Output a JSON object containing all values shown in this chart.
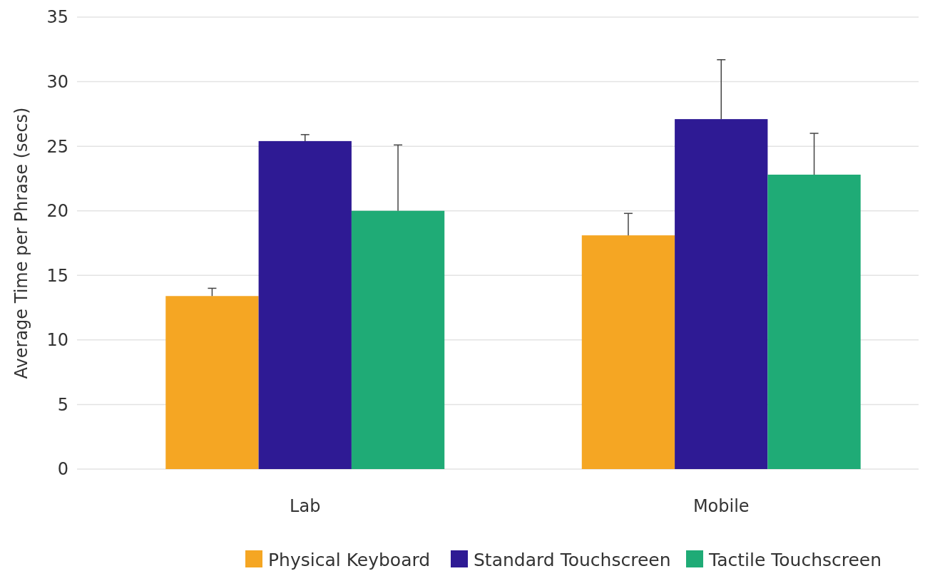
{
  "chart_data": {
    "type": "bar",
    "ylabel": "Average Time per Phrase (secs)",
    "categories": [
      "Lab",
      "Mobile"
    ],
    "series": [
      {
        "name": "Physical Keyboard",
        "color": "#f5a623",
        "values": [
          13.4,
          18.1
        ],
        "errors": [
          [
            13.4,
            14.0
          ],
          [
            18.1,
            19.8
          ]
        ]
      },
      {
        "name": "Standard Touchscreen",
        "color": "#2e1a94",
        "values": [
          25.4,
          27.1
        ],
        "errors": [
          [
            25.4,
            25.9
          ],
          [
            27.1,
            31.7
          ]
        ]
      },
      {
        "name": "Tactile Touchscreen",
        "color": "#1fab76",
        "values": [
          20.0,
          22.8
        ],
        "errors": [
          [
            20.0,
            25.1
          ],
          [
            22.8,
            26.0
          ]
        ]
      }
    ],
    "ylim": [
      0,
      35
    ],
    "yticks": [
      0,
      5,
      10,
      15,
      20,
      25,
      30,
      35
    ],
    "grid": "y",
    "legend": "bottom"
  }
}
